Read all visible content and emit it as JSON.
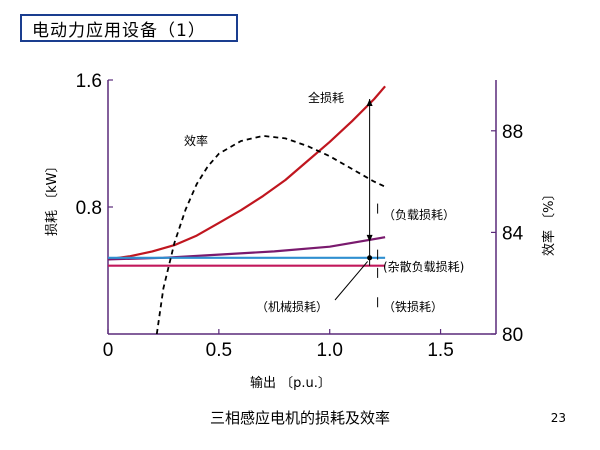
{
  "slide": {
    "title": "电动力应用设备（1）",
    "caption": "三相感应电机的损耗及效率",
    "page_number": "23"
  },
  "colors": {
    "total_loss": "#c0161f",
    "stray_load_loss": "#7a1a6e",
    "mechanical_loss": "#2f8fd0",
    "iron_loss": "#c2185b",
    "efficiency": "#000000",
    "axis": "#5a2a7a",
    "title_border": "#1a3d8f"
  },
  "chart_data": {
    "type": "line",
    "xlabel": "输出 〔p.u.〕",
    "ylabel_left": "损耗 〔kW〕",
    "ylabel_right": "效率 〔%〕",
    "xlim": [
      0,
      1.75
    ],
    "ylim_left": [
      0,
      1.6
    ],
    "ylim_right": [
      80,
      90
    ],
    "x_ticks": [
      "0",
      "0.5",
      "1.0",
      "1.5"
    ],
    "x_tick_values": [
      0,
      0.5,
      1.0,
      1.5
    ],
    "y_left_ticks": [
      "1.6",
      "0.8"
    ],
    "y_left_tick_values": [
      1.6,
      0.8
    ],
    "y_right_ticks": [
      "88",
      "84",
      "80"
    ],
    "y_right_tick_values": [
      88,
      84,
      80
    ],
    "grid": false,
    "series": [
      {
        "name": "全损耗",
        "axis": "left",
        "color_key": "total_loss",
        "dash": false,
        "x": [
          0,
          0.1,
          0.2,
          0.3,
          0.4,
          0.5,
          0.6,
          0.7,
          0.8,
          0.9,
          1.0,
          1.1,
          1.2,
          1.25
        ],
        "y": [
          0.47,
          0.49,
          0.52,
          0.56,
          0.62,
          0.7,
          0.78,
          0.87,
          0.97,
          1.09,
          1.21,
          1.34,
          1.48,
          1.56
        ]
      },
      {
        "name": "杂散负载损耗",
        "axis": "left",
        "color_key": "stray_load_loss",
        "dash": false,
        "x": [
          0,
          0.25,
          0.5,
          0.75,
          1.0,
          1.25
        ],
        "y": [
          0.47,
          0.48,
          0.5,
          0.52,
          0.55,
          0.61
        ]
      },
      {
        "name": "机械损耗",
        "axis": "left",
        "color_key": "mechanical_loss",
        "dash": false,
        "x": [
          0,
          1.25
        ],
        "y": [
          0.48,
          0.48
        ]
      },
      {
        "name": "铁损耗",
        "axis": "left",
        "color_key": "iron_loss",
        "dash": false,
        "x": [
          0,
          1.25
        ],
        "y": [
          0.43,
          0.43
        ]
      },
      {
        "name": "效率",
        "axis": "right",
        "color_key": "efficiency",
        "dash": true,
        "x": [
          0.22,
          0.25,
          0.3,
          0.35,
          0.4,
          0.45,
          0.5,
          0.6,
          0.7,
          0.8,
          0.9,
          1.0,
          1.1,
          1.2,
          1.25
        ],
        "y": [
          80.0,
          81.8,
          83.6,
          84.9,
          85.9,
          86.6,
          87.1,
          87.6,
          87.8,
          87.7,
          87.4,
          87.0,
          86.5,
          86.0,
          85.8
        ]
      }
    ],
    "annotations": {
      "total_loss": "全损耗",
      "efficiency": "效率",
      "load_loss": "（负载损耗）",
      "stray_load_loss": "(杂散负载损耗)",
      "mechanical_loss": "（机械损耗）",
      "iron_loss": "（铁损耗）"
    }
  }
}
